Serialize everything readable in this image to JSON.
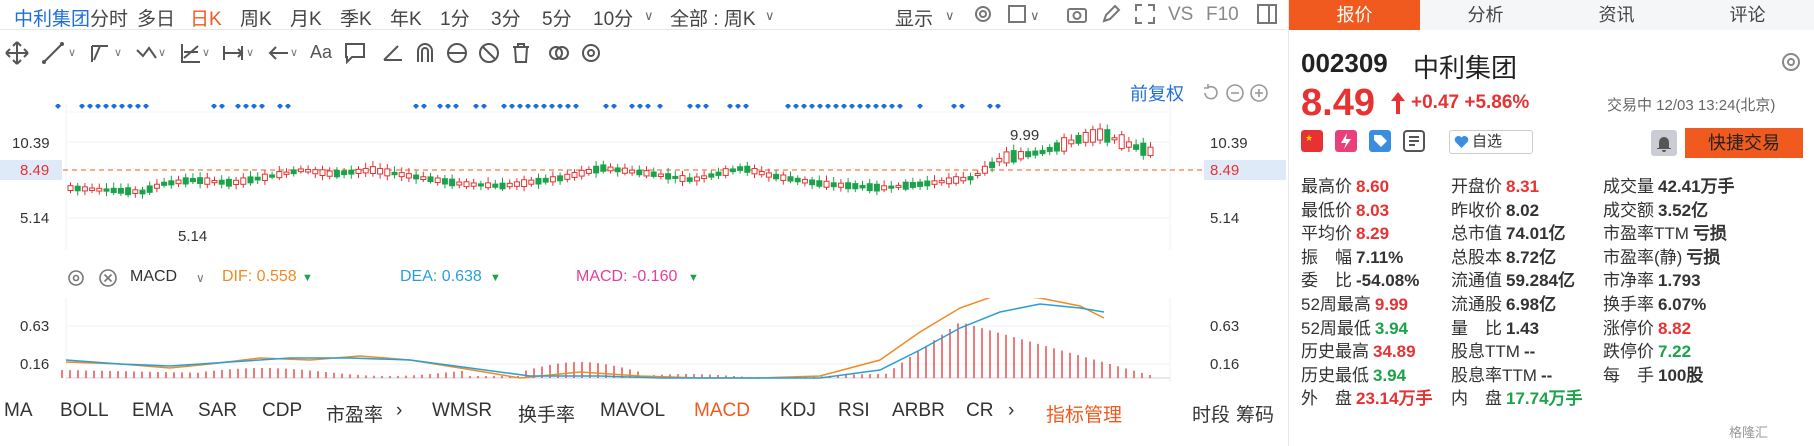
{
  "topbar": {
    "stock_name": "中利集团",
    "periods": [
      "分时",
      "多日",
      "日K",
      "周K",
      "月K",
      "季K",
      "年K",
      "1分",
      "3分",
      "5分",
      "10分"
    ],
    "active_period": "日K",
    "range_select": "全部 : 周K",
    "display_label": "显示",
    "vs_label": "VS",
    "f10_label": "F10"
  },
  "chart_controls": {
    "adjust_label": "前复权"
  },
  "price_chart": {
    "type": "candlestick",
    "y_ticks": [
      "10.39",
      "8.49",
      "5.14"
    ],
    "current_price_label": "8.49",
    "high_annotation": "9.99",
    "low_annotation": "5.14",
    "colors": {
      "up": "#e63232",
      "down": "#1aa34a",
      "marker": "#1e6fd9",
      "ref_line": "#f05a1e"
    }
  },
  "macd": {
    "label": "MACD",
    "dif": "DIF: 0.558",
    "dea": "DEA: 0.638",
    "macd": "MACD: -0.160",
    "y_ticks": [
      "0.63",
      "0.16"
    ],
    "colors": {
      "dif": "#f08a24",
      "dea": "#2a9fd6",
      "macd": "#e0409a"
    }
  },
  "indicators": {
    "items": [
      "MA",
      "BOLL",
      "EMA",
      "SAR",
      "CDP",
      "市盈率",
      "WMSR",
      "换手率",
      "MAVOL",
      "MACD",
      "KDJ",
      "RSI",
      "ARBR",
      "CR",
      "指标管理"
    ],
    "active": "MACD",
    "time_stage": "时段",
    "chip": "筹码"
  },
  "panel": {
    "tabs": [
      "报价",
      "分析",
      "资讯",
      "评论"
    ],
    "active_tab": "报价",
    "code": "002309",
    "name": "中利集团",
    "price": "8.49",
    "change": "+0.47",
    "change_pct": "+5.86%",
    "trade_status": "交易中 12/03 13:24(北京)",
    "watchlist_label": "自选",
    "trade_button": "快捷交易",
    "stats": [
      [
        [
          "最高价",
          "8.60",
          "red"
        ],
        [
          "开盘价",
          "8.31",
          "red"
        ],
        [
          "成交量",
          "42.41万手",
          "dark"
        ]
      ],
      [
        [
          "最低价",
          "8.03",
          "red"
        ],
        [
          "昨收价",
          "8.02",
          "dark"
        ],
        [
          "成交额",
          "3.52亿",
          "dark"
        ]
      ],
      [
        [
          "平均价",
          "8.29",
          "red"
        ],
        [
          "总市值",
          "74.01亿",
          "dark"
        ],
        [
          "市盈率TTM",
          "亏损",
          "dark"
        ]
      ],
      [
        [
          "振　幅",
          "7.11%",
          "dark"
        ],
        [
          "总股本",
          "8.72亿",
          "dark"
        ],
        [
          "市盈率(静)",
          "亏损",
          "dark"
        ]
      ],
      [
        [
          "委　比",
          "-54.08%",
          "dark"
        ],
        [
          "流通值",
          "59.284亿",
          "dark"
        ],
        [
          "市净率",
          "1.793",
          "dark"
        ]
      ],
      [
        [
          "52周最高",
          "9.99",
          "red"
        ],
        [
          "流通股",
          "6.98亿",
          "dark"
        ],
        [
          "换手率",
          "6.07%",
          "dark"
        ]
      ],
      [
        [
          "52周最低",
          "3.94",
          "green"
        ],
        [
          "量　比",
          "1.43",
          "dark"
        ],
        [
          "涨停价",
          "8.82",
          "red"
        ]
      ],
      [
        [
          "历史最高",
          "34.89",
          "red"
        ],
        [
          "股息TTM",
          "--",
          "dark"
        ],
        [
          "跌停价",
          "7.22",
          "green"
        ]
      ],
      [
        [
          "历史最低",
          "3.94",
          "green"
        ],
        [
          "股息率TTM",
          "--",
          "dark"
        ],
        [
          "每　手",
          "100股",
          "dark"
        ]
      ],
      [
        [
          "外　盘",
          "23.14万手",
          "red"
        ],
        [
          "内　盘",
          "17.74万手",
          "green"
        ]
      ]
    ],
    "watermark": "格隆汇"
  }
}
